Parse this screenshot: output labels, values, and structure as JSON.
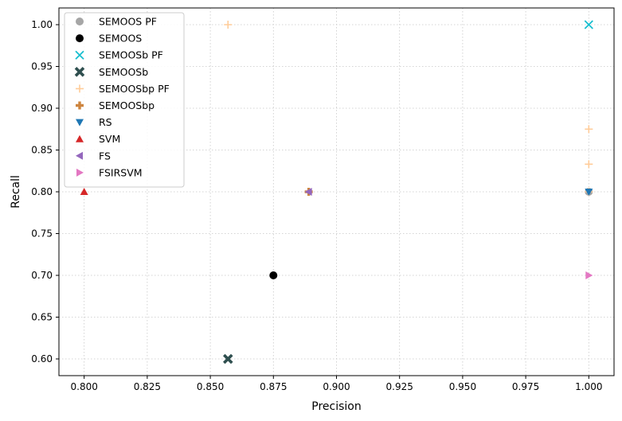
{
  "chart_data": {
    "type": "scatter",
    "xlabel": "Precision",
    "ylabel": "Recall",
    "xlim": [
      0.79,
      1.01
    ],
    "ylim": [
      0.58,
      1.02
    ],
    "xticks": [
      "0.800",
      "0.825",
      "0.850",
      "0.875",
      "0.900",
      "0.925",
      "0.950",
      "0.975",
      "1.000"
    ],
    "xtick_values": [
      0.8,
      0.825,
      0.85,
      0.875,
      0.9,
      0.925,
      0.95,
      0.975,
      1.0
    ],
    "yticks": [
      "0.60",
      "0.65",
      "0.70",
      "0.75",
      "0.80",
      "0.85",
      "0.90",
      "0.95",
      "1.00"
    ],
    "ytick_values": [
      0.6,
      0.65,
      0.7,
      0.75,
      0.8,
      0.85,
      0.9,
      0.95,
      1.0
    ],
    "grid": true,
    "grid_style": "dotted",
    "legend_position": "top-left",
    "series": [
      {
        "name": "SEMOOS PF",
        "marker": "circle",
        "color": "#a6a6a6",
        "points": [
          [
            1.0,
            0.8
          ]
        ]
      },
      {
        "name": "SEMOOS",
        "marker": "circle",
        "color": "#000000",
        "points": [
          [
            0.875,
            0.7
          ]
        ]
      },
      {
        "name": "SEMOOSb PF",
        "marker": "x",
        "color": "#17becf",
        "points": [
          [
            1.0,
            1.0
          ]
        ]
      },
      {
        "name": "SEMOOSb",
        "marker": "x-filled",
        "color": "#2f4f4f",
        "points": [
          [
            0.857,
            0.6
          ]
        ]
      },
      {
        "name": "SEMOOSbp PF",
        "marker": "plus",
        "color": "#ffcc99",
        "points": [
          [
            0.857,
            1.0
          ],
          [
            1.0,
            0.875
          ],
          [
            1.0,
            0.833
          ],
          [
            1.0,
            0.8
          ]
        ]
      },
      {
        "name": "SEMOOSbp",
        "marker": "plus-filled",
        "color": "#cd853f",
        "points": [
          [
            0.889,
            0.8
          ]
        ]
      },
      {
        "name": "RS",
        "marker": "triangle-down",
        "color": "#1f77b4",
        "points": [
          [
            1.0,
            0.8
          ]
        ]
      },
      {
        "name": "SVM",
        "marker": "triangle-up",
        "color": "#d62728",
        "points": [
          [
            0.8,
            0.8
          ]
        ]
      },
      {
        "name": "FS",
        "marker": "triangle-left",
        "color": "#9467bd",
        "points": [
          [
            0.889,
            0.8
          ]
        ]
      },
      {
        "name": "FSIRSVM",
        "marker": "triangle-right",
        "color": "#e377c2",
        "points": [
          [
            1.0,
            0.7
          ]
        ]
      }
    ]
  }
}
